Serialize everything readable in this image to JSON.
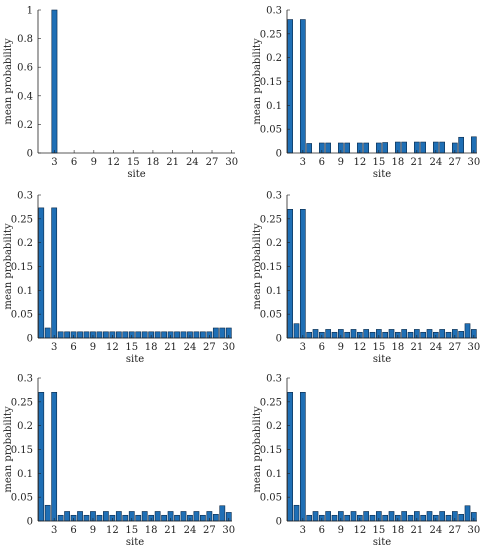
{
  "chart_data": [
    {
      "type": "bar",
      "xlabel": "site",
      "ylabel": "mean probability",
      "x": [
        1,
        2,
        3,
        4,
        5,
        6,
        7,
        8,
        9,
        10,
        11,
        12,
        13,
        14,
        15,
        16,
        17,
        18,
        19,
        20,
        21,
        22,
        23,
        24,
        25,
        26,
        27,
        28,
        29,
        30
      ],
      "values": [
        0,
        0,
        1,
        0,
        0,
        0,
        0,
        0,
        0,
        0,
        0,
        0,
        0,
        0,
        0,
        0,
        0,
        0,
        0,
        0,
        0,
        0,
        0,
        0,
        0,
        0,
        0,
        0,
        0,
        0
      ],
      "xlim": [
        0.5,
        30.5
      ],
      "ylim": [
        0,
        1
      ],
      "xticks": [
        3,
        6,
        9,
        12,
        15,
        18,
        21,
        24,
        27,
        30
      ],
      "xtick_labels": [
        "3",
        "6",
        "9",
        "12",
        "15",
        "18",
        "21",
        "24",
        "27",
        "30"
      ],
      "yticks": [
        0,
        0.2,
        0.4,
        0.6,
        0.8,
        1
      ],
      "ytick_labels": [
        "0",
        "0.2",
        "0.4",
        "0.6",
        "0.8",
        "1"
      ],
      "grid": false
    },
    {
      "type": "bar",
      "xlabel": "site",
      "ylabel": "mean probability",
      "x": [
        1,
        2,
        3,
        4,
        5,
        6,
        7,
        8,
        9,
        10,
        11,
        12,
        13,
        14,
        15,
        16,
        17,
        18,
        19,
        20,
        21,
        22,
        23,
        24,
        25,
        26,
        27,
        28,
        29,
        30
      ],
      "values": [
        0.28,
        0,
        0.28,
        0.02,
        0,
        0.021,
        0.021,
        0,
        0.021,
        0.021,
        0,
        0.021,
        0.021,
        0,
        0.021,
        0.022,
        0,
        0.023,
        0.023,
        0,
        0.023,
        0.023,
        0,
        0.023,
        0.023,
        0,
        0.021,
        0.033,
        0,
        0.034
      ],
      "xlim": [
        0.5,
        30.5
      ],
      "ylim": [
        0,
        0.3
      ],
      "xticks": [
        3,
        6,
        9,
        12,
        15,
        18,
        21,
        24,
        27,
        30
      ],
      "xtick_labels": [
        "3",
        "6",
        "9",
        "12",
        "15",
        "18",
        "21",
        "24",
        "27",
        "30"
      ],
      "yticks": [
        0,
        0.05,
        0.1,
        0.15,
        0.2,
        0.25,
        0.3
      ],
      "ytick_labels": [
        "0",
        "0.05",
        "0.1",
        "0.15",
        "0.2",
        "0.25",
        "0.3"
      ],
      "grid": false
    },
    {
      "type": "bar",
      "xlabel": "site",
      "ylabel": "mean probability",
      "x": [
        1,
        2,
        3,
        4,
        5,
        6,
        7,
        8,
        9,
        10,
        11,
        12,
        13,
        14,
        15,
        16,
        17,
        18,
        19,
        20,
        21,
        22,
        23,
        24,
        25,
        26,
        27,
        28,
        29,
        30
      ],
      "values": [
        0.273,
        0.021,
        0.273,
        0.013,
        0.013,
        0.013,
        0.013,
        0.013,
        0.013,
        0.013,
        0.013,
        0.013,
        0.013,
        0.013,
        0.013,
        0.013,
        0.013,
        0.013,
        0.013,
        0.013,
        0.013,
        0.013,
        0.013,
        0.013,
        0.013,
        0.013,
        0.013,
        0.021,
        0.021,
        0.021
      ],
      "xlim": [
        0.5,
        30.5
      ],
      "ylim": [
        0,
        0.3
      ],
      "xticks": [
        3,
        6,
        9,
        12,
        15,
        18,
        21,
        24,
        27,
        30
      ],
      "xtick_labels": [
        "3",
        "6",
        "9",
        "12",
        "15",
        "18",
        "21",
        "24",
        "27",
        "30"
      ],
      "yticks": [
        0,
        0.05,
        0.1,
        0.15,
        0.2,
        0.25,
        0.3
      ],
      "ytick_labels": [
        "0",
        "0.05",
        "0.1",
        "0.15",
        "0.2",
        "0.25",
        "0.3"
      ],
      "grid": false
    },
    {
      "type": "bar",
      "xlabel": "site",
      "ylabel": "mean probability",
      "x": [
        1,
        2,
        3,
        4,
        5,
        6,
        7,
        8,
        9,
        10,
        11,
        12,
        13,
        14,
        15,
        16,
        17,
        18,
        19,
        20,
        21,
        22,
        23,
        24,
        25,
        26,
        27,
        28,
        29,
        30
      ],
      "values": [
        0.27,
        0.03,
        0.27,
        0.012,
        0.018,
        0.012,
        0.018,
        0.012,
        0.018,
        0.012,
        0.018,
        0.012,
        0.018,
        0.012,
        0.018,
        0.012,
        0.018,
        0.012,
        0.018,
        0.012,
        0.018,
        0.012,
        0.018,
        0.012,
        0.018,
        0.012,
        0.018,
        0.014,
        0.03,
        0.018
      ],
      "xlim": [
        0.5,
        30.5
      ],
      "ylim": [
        0,
        0.3
      ],
      "xticks": [
        3,
        6,
        9,
        12,
        15,
        18,
        21,
        24,
        27,
        30
      ],
      "xtick_labels": [
        "3",
        "6",
        "9",
        "12",
        "15",
        "18",
        "21",
        "24",
        "27",
        "30"
      ],
      "yticks": [
        0,
        0.05,
        0.1,
        0.15,
        0.2,
        0.25,
        0.3
      ],
      "ytick_labels": [
        "0",
        "0.05",
        "0.1",
        "0.15",
        "0.2",
        "0.25",
        "0.3"
      ],
      "grid": false
    },
    {
      "type": "bar",
      "xlabel": "site",
      "ylabel": "mean probability",
      "x": [
        1,
        2,
        3,
        4,
        5,
        6,
        7,
        8,
        9,
        10,
        11,
        12,
        13,
        14,
        15,
        16,
        17,
        18,
        19,
        20,
        21,
        22,
        23,
        24,
        25,
        26,
        27,
        28,
        29,
        30
      ],
      "values": [
        0.27,
        0.033,
        0.27,
        0.012,
        0.02,
        0.012,
        0.02,
        0.012,
        0.02,
        0.012,
        0.02,
        0.012,
        0.02,
        0.012,
        0.02,
        0.012,
        0.02,
        0.012,
        0.02,
        0.012,
        0.02,
        0.012,
        0.02,
        0.012,
        0.02,
        0.012,
        0.02,
        0.014,
        0.032,
        0.018
      ],
      "xlim": [
        0.5,
        30.5
      ],
      "ylim": [
        0,
        0.3
      ],
      "xticks": [
        3,
        6,
        9,
        12,
        15,
        18,
        21,
        24,
        27,
        30
      ],
      "xtick_labels": [
        "3",
        "6",
        "9",
        "12",
        "15",
        "18",
        "21",
        "24",
        "27",
        "30"
      ],
      "yticks": [
        0,
        0.05,
        0.1,
        0.15,
        0.2,
        0.25,
        0.3
      ],
      "ytick_labels": [
        "0",
        "0.05",
        "0.1",
        "0.15",
        "0.2",
        "0.25",
        "0.3"
      ],
      "grid": false
    },
    {
      "type": "bar",
      "xlabel": "site",
      "ylabel": "mean probability",
      "x": [
        1,
        2,
        3,
        4,
        5,
        6,
        7,
        8,
        9,
        10,
        11,
        12,
        13,
        14,
        15,
        16,
        17,
        18,
        19,
        20,
        21,
        22,
        23,
        24,
        25,
        26,
        27,
        28,
        29,
        30
      ],
      "values": [
        0.27,
        0.033,
        0.27,
        0.012,
        0.02,
        0.012,
        0.02,
        0.012,
        0.02,
        0.012,
        0.02,
        0.012,
        0.02,
        0.012,
        0.02,
        0.012,
        0.02,
        0.012,
        0.02,
        0.012,
        0.02,
        0.012,
        0.02,
        0.012,
        0.02,
        0.012,
        0.02,
        0.014,
        0.032,
        0.018
      ],
      "xlim": [
        0.5,
        30.5
      ],
      "ylim": [
        0,
        0.3
      ],
      "xticks": [
        3,
        6,
        9,
        12,
        15,
        18,
        21,
        24,
        27,
        30
      ],
      "xtick_labels": [
        "3",
        "6",
        "9",
        "12",
        "15",
        "18",
        "21",
        "24",
        "27",
        "30"
      ],
      "yticks": [
        0,
        0.05,
        0.1,
        0.15,
        0.2,
        0.25,
        0.3
      ],
      "ytick_labels": [
        "0",
        "0.05",
        "0.1",
        "0.15",
        "0.2",
        "0.25",
        "0.3"
      ],
      "grid": false
    }
  ]
}
